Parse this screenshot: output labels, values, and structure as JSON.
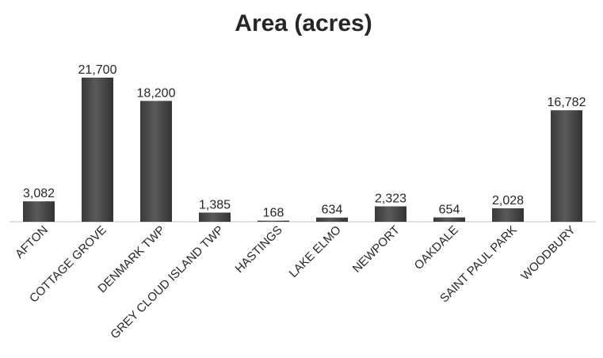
{
  "chart_data": {
    "type": "bar",
    "title": "Area (acres)",
    "xlabel": "",
    "ylabel": "",
    "categories": [
      "AFTON",
      "COTTAGE GROVE",
      "DENMARK TWP",
      "GREY CLOUD ISLAND TWP",
      "HASTINGS",
      "LAKE ELMO",
      "NEWPORT",
      "OAKDALE",
      "SAINT PAUL PARK",
      "WOODBURY"
    ],
    "values": [
      3082,
      21700,
      18200,
      1385,
      168,
      634,
      2323,
      654,
      2028,
      16782
    ],
    "value_labels": [
      "3,082",
      "21,700",
      "18,200",
      "1,385",
      "168",
      "634",
      "2,323",
      "654",
      "2,028",
      "16,782"
    ],
    "ylim": [
      0,
      21700
    ],
    "grid": false,
    "legend": "none",
    "bar_color": "#4a4a4a"
  }
}
